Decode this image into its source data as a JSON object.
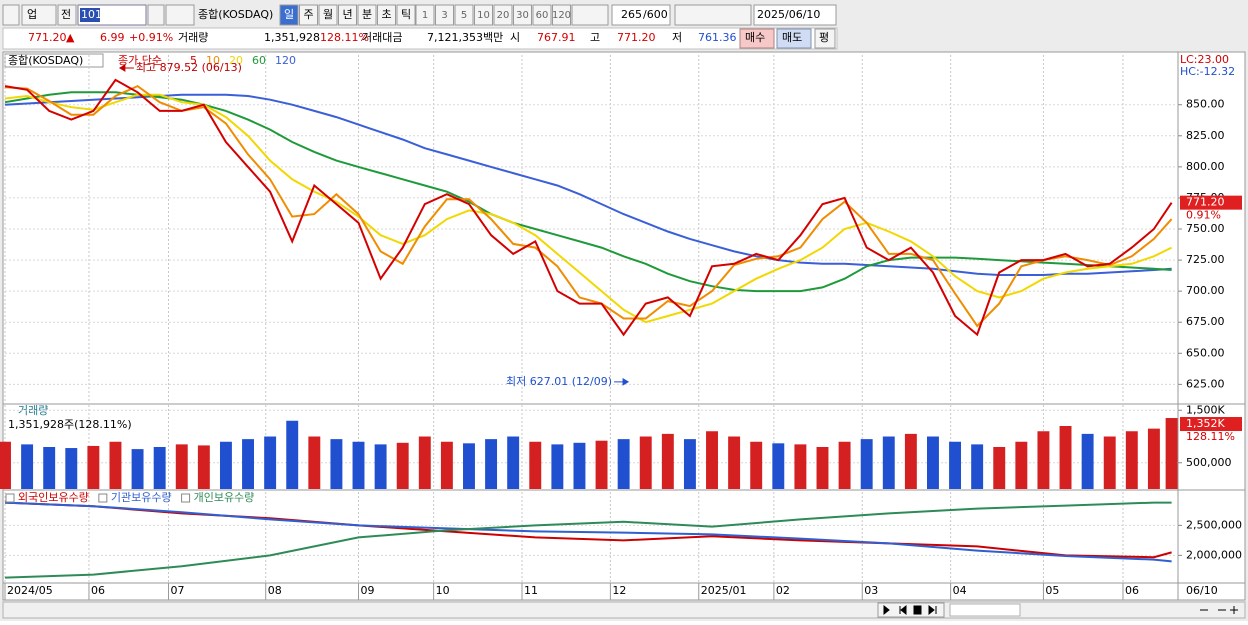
{
  "toolbar": {
    "market": "업",
    "prev": "전",
    "code": "101",
    "name": "종합(KOSDAQ)",
    "periods": [
      "일",
      "주",
      "월",
      "년",
      "분",
      "초",
      "틱"
    ],
    "intervals": [
      "1",
      "3",
      "5",
      "10",
      "20",
      "30",
      "60",
      "120"
    ],
    "count": "265",
    "max": "/600",
    "date": "2025/06/10"
  },
  "quote": {
    "price": "771.20",
    "arrow": "▲",
    "change": "6.99",
    "rate": "+0.91%",
    "vol_label": "거래량",
    "vol": "1,351,928",
    "vol_rate": "128.11%",
    "amount_label": "거래대금",
    "amount": "7,121,353백만",
    "open_label": "시",
    "open": "767.91",
    "high_label": "고",
    "high": "771.20",
    "low_label": "저",
    "low": "761.36",
    "buy": "매수",
    "sell": "매도",
    "avg": "평"
  },
  "chart_data": [
    {
      "type": "line",
      "title": "종합(KOSDAQ)",
      "legend_prefix": "종가 단순",
      "lc": "LC:23.00",
      "hc": "HC:-12.32",
      "last_label": "771.20",
      "last_change": "0.91%",
      "end_date": "06/10",
      "x": [
        0,
        5,
        10,
        15,
        20,
        25,
        30,
        35,
        40,
        45,
        50,
        55,
        60,
        65,
        70,
        75,
        80,
        85,
        90,
        95,
        100,
        105,
        110,
        115,
        120,
        125,
        130,
        135,
        140,
        145,
        150,
        155,
        160,
        165,
        170,
        175,
        180,
        185,
        190,
        195,
        200,
        205,
        210,
        215,
        220,
        225,
        230,
        235,
        240,
        245,
        250,
        255,
        260,
        264
      ],
      "xlim": [
        0,
        265
      ],
      "ylim": [
        610,
        890
      ],
      "xticks": [
        {
          "value": 0,
          "label": "2024/05"
        },
        {
          "value": 19,
          "label": "06"
        },
        {
          "value": 37,
          "label": "07"
        },
        {
          "value": 59,
          "label": "08"
        },
        {
          "value": 80,
          "label": "09"
        },
        {
          "value": 97,
          "label": "10"
        },
        {
          "value": 117,
          "label": "11"
        },
        {
          "value": 137,
          "label": "12"
        },
        {
          "value": 157,
          "label": "2025/01"
        },
        {
          "value": 174,
          "label": "02"
        },
        {
          "value": 194,
          "label": "03"
        },
        {
          "value": 214,
          "label": "04"
        },
        {
          "value": 235,
          "label": "05"
        },
        {
          "value": 253,
          "label": "06"
        }
      ],
      "yticks": [
        {
          "value": 850,
          "label": "850.00"
        },
        {
          "value": 825,
          "label": "825.00"
        },
        {
          "value": 800,
          "label": "800.00"
        },
        {
          "value": 775,
          "label": "775.00"
        },
        {
          "value": 750,
          "label": "750.00"
        },
        {
          "value": 725,
          "label": "725.00"
        },
        {
          "value": 700,
          "label": "700.00"
        },
        {
          "value": 675,
          "label": "675.00"
        },
        {
          "value": 650,
          "label": "650.00"
        },
        {
          "value": 625,
          "label": "625.00"
        }
      ],
      "grid": true,
      "series": [
        {
          "name": "120",
          "color": "#3a5fd8",
          "values": [
            850,
            851,
            852,
            853,
            854,
            855,
            856,
            857,
            858,
            858,
            858,
            857,
            854,
            850,
            845,
            840,
            834,
            828,
            822,
            815,
            810,
            805,
            800,
            795,
            790,
            785,
            778,
            770,
            762,
            755,
            748,
            742,
            737,
            732,
            728,
            725,
            723,
            722,
            722,
            721,
            720,
            719,
            718,
            716,
            714,
            713,
            713,
            713,
            714,
            714,
            715,
            716,
            717,
            718
          ]
        },
        {
          "name": "60",
          "color": "#1f9a3a",
          "values": [
            852,
            855,
            858,
            860,
            860,
            860,
            858,
            856,
            854,
            850,
            845,
            838,
            830,
            820,
            812,
            805,
            800,
            795,
            790,
            785,
            780,
            772,
            762,
            755,
            750,
            745,
            740,
            735,
            728,
            722,
            714,
            708,
            704,
            701,
            700,
            700,
            700,
            703,
            710,
            720,
            725,
            727,
            727,
            727,
            726,
            725,
            724,
            723,
            722,
            721,
            720,
            719,
            718,
            717
          ]
        },
        {
          "name": "20",
          "color": "#f0d800",
          "values": [
            855,
            857,
            852,
            848,
            846,
            852,
            858,
            858,
            852,
            850,
            840,
            825,
            805,
            790,
            780,
            772,
            760,
            745,
            738,
            745,
            758,
            765,
            762,
            755,
            745,
            730,
            715,
            700,
            685,
            675,
            680,
            685,
            690,
            700,
            710,
            718,
            725,
            735,
            750,
            755,
            748,
            740,
            728,
            712,
            700,
            695,
            700,
            710,
            715,
            718,
            720,
            722,
            728,
            735
          ]
        },
        {
          "name": "10",
          "color": "#f08c00",
          "values": [
            864,
            863,
            853,
            842,
            842,
            857,
            865,
            852,
            845,
            848,
            835,
            810,
            790,
            760,
            762,
            778,
            762,
            732,
            722,
            752,
            774,
            774,
            758,
            738,
            735,
            720,
            695,
            690,
            678,
            678,
            692,
            688,
            700,
            721,
            726,
            728,
            735,
            758,
            772,
            755,
            730,
            730,
            725,
            698,
            672,
            690,
            720,
            725,
            728,
            725,
            721,
            728,
            742,
            758
          ]
        },
        {
          "name": "5",
          "color": "#d40000",
          "values": [
            865,
            862,
            845,
            838,
            845,
            870,
            860,
            845,
            845,
            850,
            820,
            800,
            780,
            740,
            785,
            770,
            755,
            710,
            735,
            770,
            778,
            770,
            745,
            730,
            740,
            700,
            690,
            690,
            665,
            690,
            695,
            680,
            720,
            722,
            730,
            725,
            745,
            770,
            775,
            735,
            725,
            735,
            715,
            680,
            665,
            715,
            725,
            725,
            730,
            720,
            722,
            735,
            750,
            771.2
          ]
        }
      ],
      "annotations": [
        {
          "text": "최고 879.52 (06/13)",
          "x": 26,
          "y": 879.52
        },
        {
          "text": "최저 627.01 (12/09)",
          "x": 141,
          "y": 627.01
        }
      ]
    },
    {
      "type": "bar",
      "title": "거래량",
      "summary": "1,351,928주(128.11%)",
      "last_label": "1,352K",
      "last_change": "128.11%",
      "up_color": "#d42020",
      "down_color": "#2050d0",
      "values": [
        900000,
        850000,
        800000,
        780000,
        820000,
        900000,
        760000,
        800000,
        850000,
        830000,
        900000,
        950000,
        1000000,
        1300000,
        1000000,
        950000,
        900000,
        850000,
        880000,
        1000000,
        900000,
        870000,
        950000,
        1000000,
        900000,
        850000,
        880000,
        920000,
        950000,
        1000000,
        1050000,
        950000,
        1100000,
        1000000,
        900000,
        870000,
        850000,
        800000,
        900000,
        950000,
        1000000,
        1050000,
        1000000,
        900000,
        850000,
        800000,
        900000,
        1100000,
        1200000,
        1050000,
        1000000,
        1100000,
        1150000,
        1351928
      ],
      "ylim": [
        0,
        1600000
      ],
      "yticks": [
        {
          "value": 1500000,
          "label": "1,500K"
        },
        {
          "value": 500000,
          "label": "500,000"
        }
      ]
    },
    {
      "type": "line",
      "x": [
        0,
        20,
        40,
        60,
        80,
        100,
        120,
        140,
        160,
        180,
        200,
        220,
        240,
        260,
        264
      ],
      "ylim": [
        1556000,
        3056000
      ],
      "yticks": [
        {
          "value": 2500000,
          "label": "2,500,000"
        },
        {
          "value": 2000000,
          "label": "2,000,000"
        }
      ],
      "series": [
        {
          "name": "외국인보유수량",
          "color": "#cc0000",
          "values": [
            2880000,
            2820000,
            2700000,
            2620000,
            2500000,
            2400000,
            2300000,
            2250000,
            2320000,
            2250000,
            2200000,
            2150000,
            2000000,
            1970000,
            2050000
          ]
        },
        {
          "name": "기관보유수량",
          "color": "#2f5fd0",
          "values": [
            2880000,
            2820000,
            2720000,
            2600000,
            2500000,
            2450000,
            2400000,
            2380000,
            2350000,
            2280000,
            2200000,
            2080000,
            1990000,
            1930000,
            1900000
          ]
        },
        {
          "name": "개인보유수량",
          "color": "#2e8b57",
          "values": [
            1630000,
            1680000,
            1820000,
            2000000,
            2300000,
            2420000,
            2500000,
            2560000,
            2480000,
            2600000,
            2700000,
            2780000,
            2830000,
            2880000,
            2880000
          ]
        }
      ]
    }
  ]
}
